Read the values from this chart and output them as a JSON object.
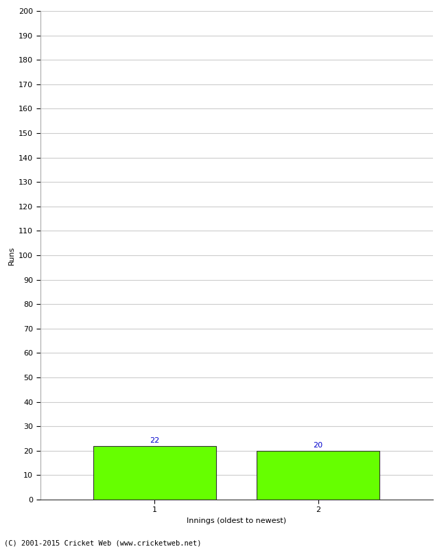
{
  "innings": [
    1,
    2
  ],
  "values": [
    22,
    20
  ],
  "bar_color": "#66ff00",
  "bar_edgecolor": "#333333",
  "xlabel": "Innings (oldest to newest)",
  "ylabel": "Runs",
  "ylim": [
    0,
    200
  ],
  "ytick_step": 10,
  "label_color": "#0000cc",
  "label_fontsize": 8,
  "axis_fontsize": 8,
  "tick_fontsize": 8,
  "footer": "(C) 2001-2015 Cricket Web (www.cricketweb.net)",
  "background_color": "#ffffff",
  "grid_color": "#cccccc",
  "fig_width": 6.5,
  "fig_height": 8.0,
  "bar_width": 0.75,
  "xlim_left": 0.3,
  "xlim_right": 2.7
}
